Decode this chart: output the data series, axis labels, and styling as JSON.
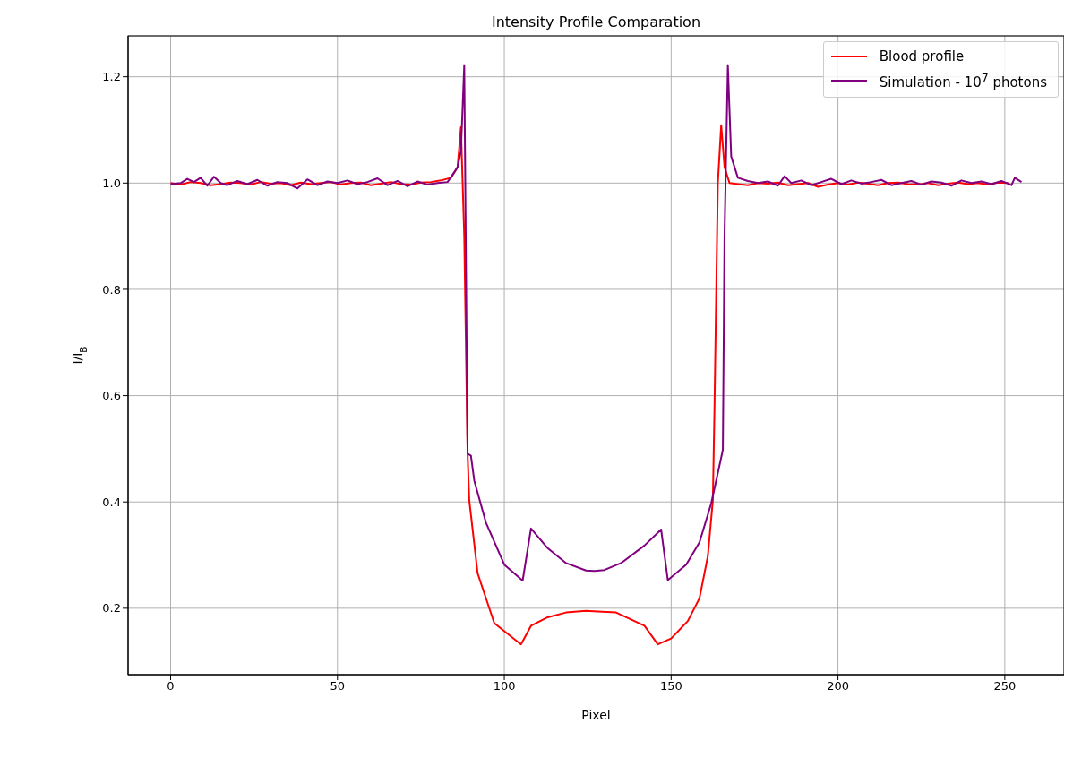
{
  "chart_data": {
    "type": "line",
    "title": "Intensity Profile Comparation",
    "xlabel": "Pixel",
    "ylabel": "I/I$_{B}$",
    "xlim": [
      -12.75,
      267.75
    ],
    "xticks": [
      0,
      50,
      100,
      150,
      200,
      250
    ],
    "ylim": [
      0.075,
      1.277
    ],
    "yticks": [
      0.2,
      0.4,
      0.6,
      0.8,
      {
        "value": 1.0,
        "label": "1.0"
      },
      1.2
    ],
    "grid": true,
    "legend": "top right",
    "line_style": "solid",
    "marker": "none",
    "series": [
      {
        "name": "Blood profile",
        "color": "#ff0000",
        "x": [
          0,
          3,
          6,
          9,
          12,
          15,
          18,
          21,
          24,
          27,
          30,
          33,
          36,
          39,
          42,
          45,
          48,
          51,
          54,
          57,
          60,
          63,
          66,
          69,
          72,
          75,
          78,
          81,
          84,
          86,
          87,
          88,
          89,
          89.5,
          92,
          97,
          105,
          108,
          113,
          118.5,
          124.5,
          128,
          133.5,
          142,
          146,
          150,
          155,
          158.5,
          161,
          162.5,
          163,
          164,
          165,
          166,
          167.5,
          170,
          173,
          176,
          179,
          182,
          185,
          188,
          191,
          194,
          197,
          200,
          203,
          206,
          209,
          212,
          215,
          218,
          221,
          224,
          227,
          230,
          233,
          236,
          239,
          242,
          245,
          248,
          251
        ],
        "values": [
          1.0,
          0.997,
          1.002,
          1.0,
          0.996,
          0.998,
          1.001,
          1.0,
          0.997,
          1.002,
          0.999,
          1.0,
          0.996,
          1.001,
          0.998,
          1.0,
          1.002,
          0.997,
          1.0,
          1.001,
          0.996,
          0.999,
          1.002,
          0.998,
          0.997,
          1.001,
          1.002,
          1.005,
          1.01,
          1.03,
          1.105,
          0.9,
          0.491,
          0.403,
          0.266,
          0.172,
          0.132,
          0.167,
          0.183,
          0.192,
          0.195,
          0.194,
          0.192,
          0.167,
          0.132,
          0.143,
          0.176,
          0.219,
          0.298,
          0.403,
          0.58,
          1.0,
          1.109,
          1.03,
          1.0,
          0.998,
          0.996,
          1.0,
          0.999,
          1.001,
          0.996,
          0.998,
          1.0,
          0.993,
          0.997,
          1.0,
          0.997,
          1.001,
          0.999,
          0.996,
          1.0,
          1.001,
          0.998,
          0.997,
          1.0,
          0.996,
          0.999,
          1.001,
          0.998,
          1.0,
          0.997,
          1.001,
          1.0
        ]
      },
      {
        "name": "Simulation - 10$^{7}$ photons",
        "color": "#800080",
        "x": [
          0,
          3,
          5,
          7,
          9,
          11,
          13,
          15,
          17,
          20,
          23,
          26,
          29,
          32,
          35,
          38,
          41,
          44,
          47,
          50,
          53,
          56,
          59,
          62,
          65,
          68,
          71,
          74,
          77,
          80,
          83,
          85,
          86,
          87,
          88,
          89,
          90,
          91,
          94.5,
          100,
          105.5,
          108,
          113,
          118.5,
          124.5,
          127,
          130,
          135,
          142,
          147,
          149,
          154.5,
          158.5,
          162,
          165.5,
          166,
          167,
          168,
          170,
          173,
          176,
          179,
          182,
          184,
          186,
          189,
          192,
          195,
          198,
          201,
          204,
          207,
          210,
          213,
          216,
          219,
          222,
          225,
          228,
          231,
          234,
          237,
          240,
          243,
          246,
          249,
          252,
          253,
          255
        ],
        "values": [
          0.998,
          1.0,
          1.008,
          1.002,
          1.01,
          0.995,
          1.012,
          1.0,
          0.996,
          1.004,
          0.998,
          1.006,
          0.995,
          1.002,
          1.0,
          0.99,
          1.007,
          0.996,
          1.003,
          1.0,
          1.005,
          0.998,
          1.002,
          1.009,
          0.996,
          1.004,
          0.994,
          1.003,
          0.997,
          1.0,
          1.002,
          1.02,
          1.03,
          1.06,
          1.222,
          0.491,
          0.487,
          0.44,
          0.361,
          0.282,
          0.252,
          0.35,
          0.313,
          0.285,
          0.271,
          0.27,
          0.272,
          0.285,
          0.318,
          0.348,
          0.253,
          0.282,
          0.324,
          0.397,
          0.498,
          0.9,
          1.222,
          1.05,
          1.01,
          1.004,
          1.0,
          1.003,
          0.995,
          1.013,
          1.0,
          1.005,
          0.996,
          1.002,
          1.008,
          0.998,
          1.005,
          0.999,
          1.002,
          1.006,
          0.996,
          1.0,
          1.004,
          0.997,
          1.003,
          1.001,
          0.995,
          1.005,
          1.0,
          1.003,
          0.998,
          1.004,
          0.996,
          1.01,
          1.002
        ]
      }
    ]
  }
}
